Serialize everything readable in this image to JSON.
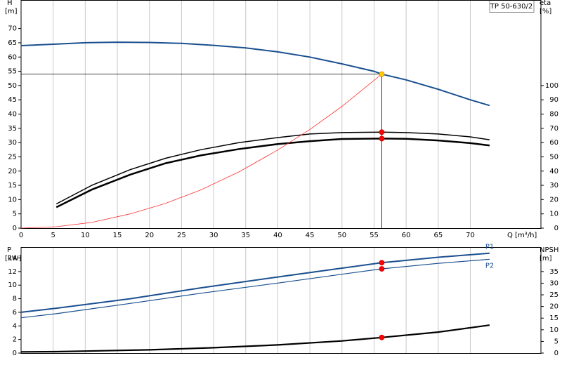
{
  "chart_data": [
    {
      "type": "line",
      "title": "TP 50-630/2",
      "ylabel": "H",
      "yunit": "[m]",
      "y2label": "eta",
      "y2unit": "[%]",
      "xlabel": "Q [m³/h]",
      "xlim": [
        0,
        81
      ],
      "xticks": [
        0,
        5,
        10,
        15,
        20,
        25,
        30,
        35,
        40,
        45,
        50,
        55,
        60,
        65,
        70
      ],
      "ylim": [
        0,
        80
      ],
      "yticks": [
        0,
        5,
        10,
        15,
        20,
        25,
        30,
        35,
        40,
        45,
        50,
        55,
        60,
        65,
        70
      ],
      "y2lim": [
        0,
        160
      ],
      "y2ticks": [
        0,
        10,
        20,
        30,
        40,
        50,
        60,
        70,
        80,
        90,
        100
      ],
      "grid": "x",
      "series": [
        {
          "color": "#1a4f8f",
          "x": [
            0,
            5,
            10,
            15,
            20,
            25,
            30,
            35,
            40,
            45,
            50,
            55,
            56.2,
            60,
            65,
            70,
            73
          ],
          "values": [
            64,
            64.5,
            65,
            65.2,
            65.1,
            64.8,
            64.1,
            63.2,
            61.8,
            60,
            57.6,
            55,
            54,
            52,
            48.7,
            45,
            43
          ]
        },
        {
          "color": "#000000",
          "axis": "y2",
          "x": [
            5.5,
            11,
            17,
            22.5,
            28,
            34,
            40,
            45,
            50,
            56.2,
            60,
            65,
            70,
            73
          ],
          "values": [
            17,
            30,
            41,
            49,
            55,
            60,
            63.5,
            66,
            67,
            67.3,
            67,
            66,
            64,
            62
          ]
        },
        {
          "color": "#000000",
          "axis": "y2",
          "x": [
            5.5,
            11,
            17,
            22.5,
            28,
            34,
            40,
            45,
            50,
            56.2,
            60,
            65,
            70,
            73
          ],
          "values": [
            14.6,
            27,
            37.5,
            45.5,
            51,
            55.5,
            59,
            61,
            62.5,
            62.8,
            62.6,
            61.5,
            59.6,
            58
          ]
        },
        {
          "color": "#ff3030",
          "x": [
            0,
            5.5,
            11,
            17,
            22.5,
            28,
            34,
            40,
            45,
            50,
            56.2
          ],
          "values": [
            0,
            0.5,
            2,
            5,
            8.7,
            13.4,
            19.8,
            27.4,
            34.6,
            42.7,
            54
          ]
        }
      ],
      "points": [
        {
          "x": 56.2,
          "y": 54,
          "color": "#ffcc00",
          "crosshair": true
        },
        {
          "x": 56.2,
          "y": 67.3,
          "axis": "y2",
          "color": "#ff0000"
        },
        {
          "x": 56.2,
          "y": 62.8,
          "axis": "y2",
          "color": "#ff0000"
        }
      ]
    },
    {
      "type": "line",
      "ylabel": "P",
      "yunit": "[kW]",
      "y2label": "NPSH",
      "y2unit": "[m]",
      "xlim": [
        0,
        81
      ],
      "xticks": [
        0,
        5,
        10,
        15,
        20,
        25,
        30,
        35,
        40,
        45,
        50,
        55,
        60,
        65,
        70
      ],
      "ylim": [
        0,
        15.6
      ],
      "yticks": [
        0,
        2,
        4,
        6,
        8,
        10,
        12,
        14
      ],
      "y2lim": [
        0,
        45.5
      ],
      "y2ticks": [
        0,
        5,
        10,
        15,
        20,
        25,
        30,
        35
      ],
      "grid": "x",
      "series": [
        {
          "name": "P1",
          "color": "#1a4f8f",
          "x": [
            0,
            5.5,
            17,
            28,
            40,
            50,
            56.2,
            65,
            73
          ],
          "values": [
            6,
            6.6,
            8,
            9.6,
            11.2,
            12.5,
            13.3,
            14.1,
            14.7
          ]
        },
        {
          "name": "P2",
          "color": "#1a4f8f",
          "x": [
            0,
            5.5,
            17,
            28,
            40,
            50,
            56.2,
            65,
            73
          ],
          "values": [
            5.2,
            5.8,
            7.3,
            8.8,
            10.3,
            11.6,
            12.4,
            13.2,
            13.8
          ]
        },
        {
          "color": "#000000",
          "axis": "y2",
          "x": [
            0,
            5.5,
            20,
            30,
            40,
            50,
            56.2,
            65,
            73
          ],
          "values": [
            0.5,
            0.6,
            1.4,
            2.3,
            3.5,
            5.2,
            6.7,
            9,
            12
          ]
        }
      ],
      "points": [
        {
          "x": 56.2,
          "y": 13.3,
          "color": "#ff0000"
        },
        {
          "x": 56.2,
          "y": 12.4,
          "color": "#ff0000"
        },
        {
          "x": 56.2,
          "y": 6.7,
          "axis": "y2",
          "color": "#ff0000"
        }
      ]
    }
  ]
}
